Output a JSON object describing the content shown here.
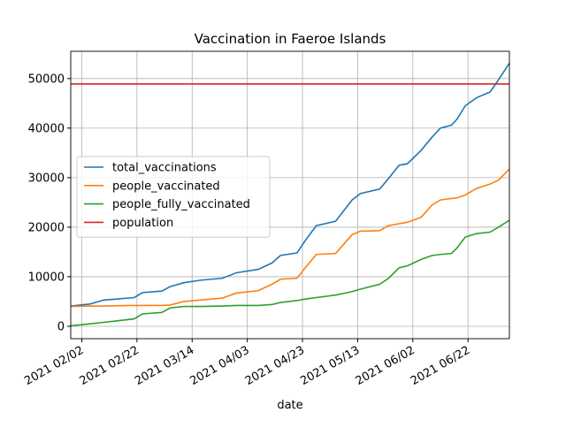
{
  "chart_data": {
    "type": "line",
    "title": "Vaccination in Faeroe Islands",
    "x_label": "date",
    "x": [
      "2021-01-29",
      "2021-02-05",
      "2021-02-10",
      "2021-02-21",
      "2021-02-24",
      "2021-03-03",
      "2021-03-06",
      "2021-03-11",
      "2021-03-17",
      "2021-03-25",
      "2021-03-30",
      "2021-04-07",
      "2021-04-12",
      "2021-04-15",
      "2021-04-21",
      "2021-04-24",
      "2021-04-28",
      "2021-05-05",
      "2021-05-11",
      "2021-05-14",
      "2021-05-21",
      "2021-05-24",
      "2021-05-28",
      "2021-05-31",
      "2021-06-05",
      "2021-06-09",
      "2021-06-12",
      "2021-06-16",
      "2021-06-18",
      "2021-06-21",
      "2021-06-25",
      "2021-06-30",
      "2021-07-03",
      "2021-07-07"
    ],
    "series": [
      {
        "name": "total_vaccinations",
        "color": "#1f77b4",
        "values": [
          4100,
          4500,
          5300,
          5800,
          6800,
          7100,
          8000,
          8800,
          9300,
          9700,
          10800,
          11500,
          12800,
          14300,
          14800,
          17300,
          20300,
          21200,
          25500,
          26800,
          27700,
          29700,
          32500,
          32800,
          35500,
          38200,
          40000,
          40600,
          41800,
          44500,
          46100,
          47300,
          49700,
          53100
        ]
      },
      {
        "name": "people_vaccinated",
        "color": "#ff7f0e",
        "values": [
          4000,
          4100,
          4100,
          4200,
          4200,
          4200,
          4300,
          5000,
          5300,
          5700,
          6700,
          7200,
          8500,
          9500,
          9700,
          11800,
          14500,
          14700,
          18500,
          19200,
          19300,
          20300,
          20700,
          21000,
          22000,
          24500,
          25500,
          25800,
          25900,
          26500,
          27800,
          28700,
          29500,
          31700
        ]
      },
      {
        "name": "people_fully_vaccinated",
        "color": "#2ca02c",
        "values": [
          100,
          500,
          800,
          1500,
          2500,
          2800,
          3700,
          4000,
          4000,
          4100,
          4200,
          4200,
          4400,
          4800,
          5200,
          5500,
          5800,
          6300,
          7000,
          7500,
          8500,
          9600,
          11800,
          12200,
          13500,
          14300,
          14500,
          14700,
          15800,
          18000,
          18700,
          19000,
          20000,
          21400
        ]
      }
    ],
    "hlines": [
      {
        "name": "population",
        "color": "#d62728",
        "value": 48900
      }
    ],
    "xlim": [
      "2021-01-29",
      "2021-07-07"
    ],
    "xticks": [
      {
        "value": "2021-02-02",
        "label": "2021 02/02"
      },
      {
        "value": "2021-02-22",
        "label": "2021 02/22"
      },
      {
        "value": "2021-03-14",
        "label": "2021 03/14"
      },
      {
        "value": "2021-04-03",
        "label": "2021 04/03"
      },
      {
        "value": "2021-04-23",
        "label": "2021 04/23"
      },
      {
        "value": "2021-05-13",
        "label": "2021 05/13"
      },
      {
        "value": "2021-06-02",
        "label": "2021 06/02"
      },
      {
        "value": "2021-06-22",
        "label": "2021 06/22"
      }
    ],
    "ylim": [
      -2500,
      55500
    ],
    "yticks": [
      0,
      10000,
      20000,
      30000,
      40000,
      50000
    ],
    "grid": true,
    "legend": "center left"
  }
}
